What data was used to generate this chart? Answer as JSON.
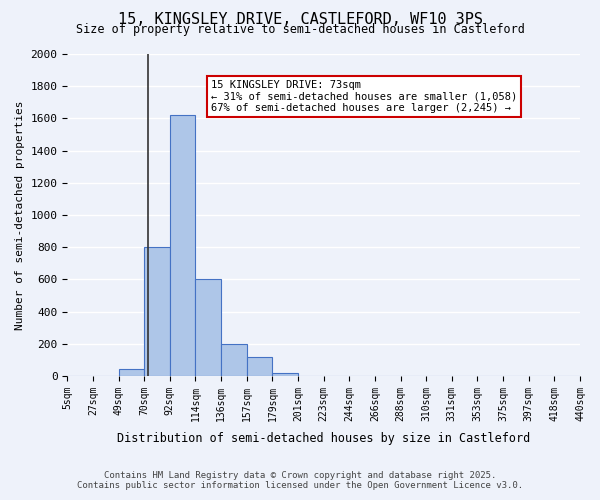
{
  "title_line1": "15, KINGSLEY DRIVE, CASTLEFORD, WF10 3PS",
  "title_line2": "Size of property relative to semi-detached houses in Castleford",
  "xlabel": "Distribution of semi-detached houses by size in Castleford",
  "ylabel": "Number of semi-detached properties",
  "bin_labels": [
    "5sqm",
    "27sqm",
    "49sqm",
    "70sqm",
    "92sqm",
    "114sqm",
    "136sqm",
    "157sqm",
    "179sqm",
    "201sqm",
    "223sqm",
    "244sqm",
    "266sqm",
    "288sqm",
    "310sqm",
    "331sqm",
    "353sqm",
    "375sqm",
    "397sqm",
    "418sqm",
    "440sqm"
  ],
  "bar_values": [
    0,
    0,
    40,
    800,
    1620,
    600,
    200,
    120,
    20,
    0,
    0,
    0,
    0,
    0,
    0,
    0,
    0,
    0,
    0,
    0
  ],
  "bar_color": "#aec6e8",
  "bar_edge_color": "#4472c4",
  "bg_color": "#eef2fa",
  "grid_color": "#ffffff",
  "property_size": 73,
  "property_bin_index": 3,
  "annotation_title": "15 KINGSLEY DRIVE: 73sqm",
  "annotation_line1": "← 31% of semi-detached houses are smaller (1,058)",
  "annotation_line2": "67% of semi-detached houses are larger (2,245) →",
  "annotation_box_color": "#ffffff",
  "annotation_border_color": "#cc0000",
  "ylim": [
    0,
    2000
  ],
  "yticks": [
    0,
    200,
    400,
    600,
    800,
    1000,
    1200,
    1400,
    1600,
    1800,
    2000
  ],
  "footer_line1": "Contains HM Land Registry data © Crown copyright and database right 2025.",
  "footer_line2": "Contains public sector information licensed under the Open Government Licence v3.0."
}
